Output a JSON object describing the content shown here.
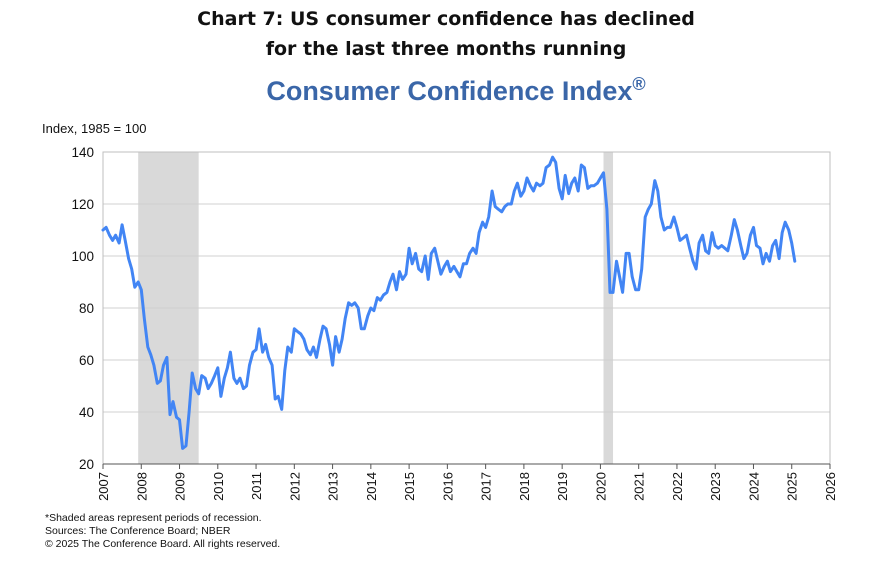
{
  "heading": {
    "line1": "Chart 7: US consumer confidence has declined",
    "line2": "for the last three months running"
  },
  "footnotes": {
    "recession_note": "*Shaded areas represent periods of recession.",
    "sources": "Sources: The Conference Board;  NBER",
    "copyright": "© 2025 The Conference Board. All rights reserved."
  },
  "colors": {
    "line": "#4285f4",
    "recession": "#d9d9d9",
    "title": "#3a66a8"
  },
  "chart_data": {
    "type": "line",
    "title": "Consumer Confidence Index",
    "title_mark": "®",
    "ylabel": "Index, 1985 = 100",
    "xlabel": "",
    "xlim": [
      2007,
      2026
    ],
    "ylim": [
      20,
      140
    ],
    "y_ticks": [
      20,
      40,
      60,
      80,
      100,
      120,
      140
    ],
    "x_ticks": [
      2007,
      2008,
      2009,
      2010,
      2011,
      2012,
      2013,
      2014,
      2015,
      2016,
      2017,
      2018,
      2019,
      2020,
      2021,
      2022,
      2023,
      2024,
      2025,
      2026
    ],
    "grid": true,
    "recessions": [
      [
        2007.92,
        2009.5
      ],
      [
        2020.08,
        2020.33
      ]
    ],
    "series": [
      {
        "name": "Consumer Confidence Index",
        "x": [
          2007.0,
          2007.08,
          2007.17,
          2007.25,
          2007.33,
          2007.42,
          2007.5,
          2007.58,
          2007.67,
          2007.75,
          2007.83,
          2007.92,
          2008.0,
          2008.08,
          2008.17,
          2008.25,
          2008.33,
          2008.42,
          2008.5,
          2008.58,
          2008.67,
          2008.75,
          2008.83,
          2008.92,
          2009.0,
          2009.08,
          2009.17,
          2009.25,
          2009.33,
          2009.42,
          2009.5,
          2009.58,
          2009.67,
          2009.75,
          2009.83,
          2009.92,
          2010.0,
          2010.08,
          2010.17,
          2010.25,
          2010.33,
          2010.42,
          2010.5,
          2010.58,
          2010.67,
          2010.75,
          2010.83,
          2010.92,
          2011.0,
          2011.08,
          2011.17,
          2011.25,
          2011.33,
          2011.42,
          2011.5,
          2011.58,
          2011.67,
          2011.75,
          2011.83,
          2011.92,
          2012.0,
          2012.08,
          2012.17,
          2012.25,
          2012.33,
          2012.42,
          2012.5,
          2012.58,
          2012.67,
          2012.75,
          2012.83,
          2012.92,
          2013.0,
          2013.08,
          2013.17,
          2013.25,
          2013.33,
          2013.42,
          2013.5,
          2013.58,
          2013.67,
          2013.75,
          2013.83,
          2013.92,
          2014.0,
          2014.08,
          2014.17,
          2014.25,
          2014.33,
          2014.42,
          2014.5,
          2014.58,
          2014.67,
          2014.75,
          2014.83,
          2014.92,
          2015.0,
          2015.08,
          2015.17,
          2015.25,
          2015.33,
          2015.42,
          2015.5,
          2015.58,
          2015.67,
          2015.75,
          2015.83,
          2015.92,
          2016.0,
          2016.08,
          2016.17,
          2016.25,
          2016.33,
          2016.42,
          2016.5,
          2016.58,
          2016.67,
          2016.75,
          2016.83,
          2016.92,
          2017.0,
          2017.08,
          2017.17,
          2017.25,
          2017.33,
          2017.42,
          2017.5,
          2017.58,
          2017.67,
          2017.75,
          2017.83,
          2017.92,
          2018.0,
          2018.08,
          2018.17,
          2018.25,
          2018.33,
          2018.42,
          2018.5,
          2018.58,
          2018.67,
          2018.75,
          2018.83,
          2018.92,
          2019.0,
          2019.08,
          2019.17,
          2019.25,
          2019.33,
          2019.42,
          2019.5,
          2019.58,
          2019.67,
          2019.75,
          2019.83,
          2019.92,
          2020.0,
          2020.08,
          2020.17,
          2020.25,
          2020.33,
          2020.42,
          2020.5,
          2020.58,
          2020.67,
          2020.75,
          2020.83,
          2020.92,
          2021.0,
          2021.08,
          2021.17,
          2021.25,
          2021.33,
          2021.42,
          2021.5,
          2021.58,
          2021.67,
          2021.75,
          2021.83,
          2021.92,
          2022.0,
          2022.08,
          2022.17,
          2022.25,
          2022.33,
          2022.42,
          2022.5,
          2022.58,
          2022.67,
          2022.75,
          2022.83,
          2022.92,
          2023.0,
          2023.08,
          2023.17,
          2023.25,
          2023.33,
          2023.42,
          2023.5,
          2023.58,
          2023.67,
          2023.75,
          2023.83,
          2023.92,
          2024.0,
          2024.08,
          2024.17,
          2024.25,
          2024.33,
          2024.42,
          2024.5,
          2024.58,
          2024.67,
          2024.75,
          2024.83,
          2024.92,
          2025.0,
          2025.08
        ],
        "values": [
          110,
          111,
          108,
          106,
          108,
          105,
          112,
          106,
          99,
          95,
          88,
          90,
          87,
          76,
          65,
          62,
          58,
          51,
          52,
          58,
          61,
          39,
          44,
          38,
          37,
          26,
          27,
          40,
          55,
          49,
          47,
          54,
          53,
          49,
          51,
          54,
          57,
          46,
          53,
          57,
          63,
          53,
          51,
          53,
          49,
          50,
          58,
          63,
          64,
          72,
          63,
          66,
          61,
          58,
          45,
          46,
          41,
          56,
          65,
          63,
          72,
          71,
          70,
          68,
          64,
          62,
          65,
          61,
          68,
          73,
          72,
          66,
          58,
          69,
          63,
          68,
          76,
          82,
          81,
          82,
          80,
          72,
          72,
          77,
          80,
          79,
          84,
          83,
          85,
          86,
          90,
          93,
          87,
          94,
          91,
          93,
          103,
          97,
          101,
          95,
          94,
          100,
          91,
          101,
          103,
          98,
          93,
          96,
          98,
          94,
          96,
          94,
          92,
          97,
          97,
          101,
          103,
          101,
          109,
          113,
          111,
          115,
          125,
          119,
          118,
          117,
          119,
          120,
          120,
          125,
          128,
          123,
          125,
          130,
          127,
          125,
          128,
          127,
          128,
          134,
          135,
          138,
          136,
          126,
          122,
          131,
          124,
          128,
          130,
          125,
          135,
          134,
          126,
          127,
          127,
          128,
          130,
          132,
          118,
          86,
          86,
          98,
          92,
          86,
          101,
          101,
          92,
          87,
          87,
          95,
          115,
          118,
          120,
          129,
          125,
          115,
          110,
          111,
          111,
          115,
          111,
          106,
          107,
          108,
          103,
          98,
          95,
          105,
          108,
          102,
          101,
          109,
          104,
          103,
          104,
          103,
          102,
          108,
          114,
          110,
          104,
          99,
          101,
          108,
          111,
          104,
          103,
          97,
          101,
          98,
          104,
          106,
          99,
          109,
          113,
          110,
          105,
          98
        ]
      }
    ]
  }
}
